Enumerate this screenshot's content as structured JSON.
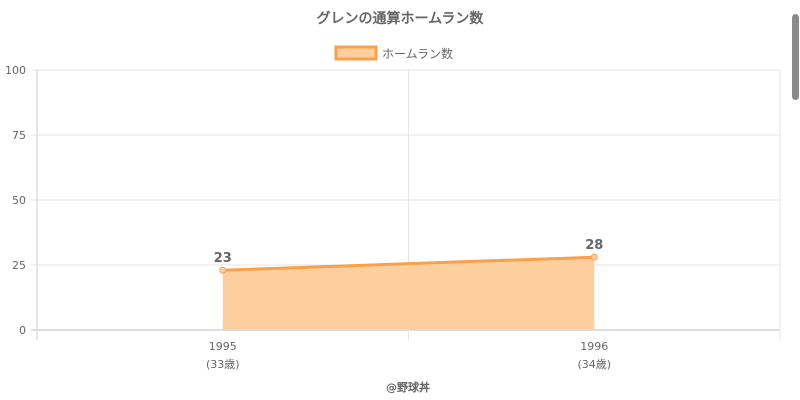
{
  "chart_data": {
    "type": "area",
    "title": "グレンの通算ホームラン数",
    "categories": [
      "1995",
      "1996"
    ],
    "category_sublabels": [
      "(33歳)",
      "(34歳)"
    ],
    "series": [
      {
        "name": "ホームラン数",
        "values": [
          23,
          28
        ]
      }
    ],
    "ylim": [
      0,
      100
    ],
    "yticks": [
      0,
      25,
      50,
      75,
      100
    ],
    "grid": true,
    "legend_position": "top",
    "data_labels": true,
    "colors": {
      "line": "#f9a04b",
      "fill": "#fdcf9f",
      "grid": "#e6e6e6",
      "text": "#666666"
    }
  },
  "credit": "@野球丼"
}
